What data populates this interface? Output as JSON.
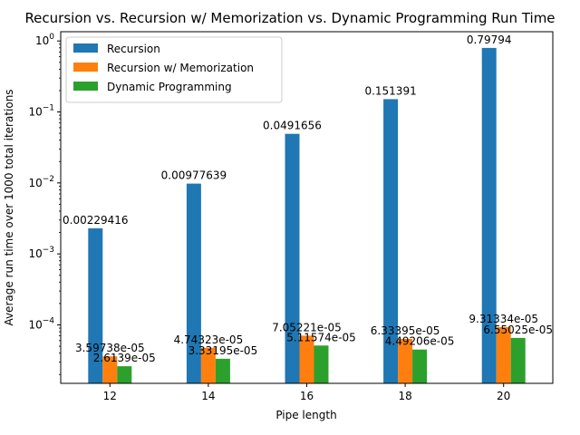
{
  "chart_data": {
    "type": "bar",
    "title": "Recursion vs. Recursion w/ Memorization vs. Dynamic Programming Run Time",
    "xlabel": "Pipe length",
    "ylabel": "Average run time over 1000 total iterations",
    "yscale": "log",
    "ylim": [
      1.5e-05,
      1.35
    ],
    "yticks": [
      0.0001,
      0.001,
      0.01,
      0.1,
      1
    ],
    "ytick_exponents": [
      "−4",
      "−3",
      "−2",
      "−1",
      "0"
    ],
    "ytick_base": "10",
    "categories": [
      "12",
      "14",
      "16",
      "18",
      "20"
    ],
    "legend_position": "top-left",
    "grid": false,
    "series": [
      {
        "name": "Recursion",
        "color": "#1f77b4",
        "values": [
          0.00229416,
          0.00977639,
          0.0491656,
          0.151391,
          0.79794
        ],
        "labels": [
          "0.00229416",
          "0.00977639",
          "0.0491656",
          "0.151391",
          "0.79794"
        ]
      },
      {
        "name": "Recursion w/ Memorization",
        "color": "#ff7f0e",
        "values": [
          3.59738e-05,
          4.74323e-05,
          7.05221e-05,
          6.33395e-05,
          9.31334e-05
        ],
        "labels": [
          "3.59738e-05",
          "4.74323e-05",
          "7.05221e-05",
          "6.33395e-05",
          "9.31334e-05"
        ]
      },
      {
        "name": "Dynamic Programming",
        "color": "#2ca02c",
        "values": [
          2.6139e-05,
          3.33195e-05,
          5.11574e-05,
          4.49206e-05,
          6.55025e-05
        ],
        "labels": [
          "2.6139e-05",
          "3.33195e-05",
          "5.11574e-05",
          "4.49206e-05",
          "6.55025e-05"
        ]
      }
    ]
  }
}
